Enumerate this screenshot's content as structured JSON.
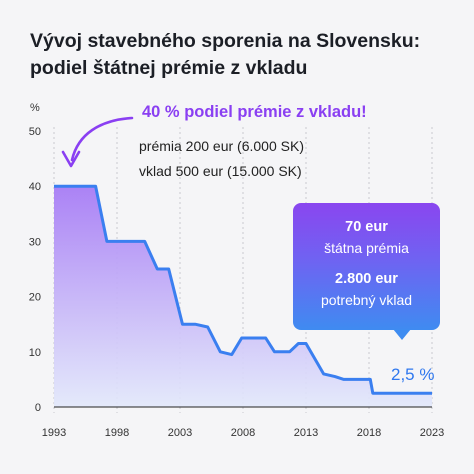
{
  "title": {
    "line1": "Vývoj stavebného sporenia na Slovensku:",
    "line2": "podiel štátnej prémie z vkladu"
  },
  "annotations": {
    "callout": "40 % podiel prémie z vkladu!",
    "note1": "prémia 200 eur (6.000 SK)",
    "note2": "vklad 500 eur (15.000 SK)",
    "box_amount1": "70 eur",
    "box_label1": "štátna prémia",
    "box_amount2": "2.800 eur",
    "box_label2": "potrebný vklad",
    "end_label": "2,5 %"
  },
  "colors": {
    "line": "#3a7ff0",
    "area_top": "#a77cf5",
    "area_bottom": "#e2e8fb",
    "callout": "#8a3ff2",
    "arrow": "#8a3ff2"
  },
  "chart_data": {
    "type": "area",
    "title": "Vývoj stavebného sporenia na Slovensku: podiel štátnej prémie z vkladu",
    "xlabel": "",
    "ylabel": "%",
    "xlim": [
      1993,
      2023
    ],
    "ylim": [
      0,
      50
    ],
    "x_ticks": [
      1993,
      1998,
      2003,
      2008,
      2013,
      2018,
      2023
    ],
    "y_ticks": [
      0,
      10,
      20,
      30,
      40,
      50
    ],
    "grid": "vertical",
    "x": [
      1993,
      1996.3,
      1997.2,
      2000,
      2000.2,
      2001.2,
      2002.1,
      2003.2,
      2004.2,
      2005.2,
      2006.2,
      2007.1,
      2007.9,
      2009.8,
      2010.5,
      2011.7,
      2012.4,
      2013,
      2014.4,
      2015.3,
      2016,
      2018.1,
      2018.3,
      2023
    ],
    "values": [
      40,
      40,
      30,
      30,
      30,
      25,
      25,
      15,
      15,
      14.5,
      10,
      9.5,
      12.5,
      12.5,
      10,
      10,
      11.5,
      11.5,
      6,
      5.5,
      5,
      5,
      2.5,
      2.5
    ]
  }
}
